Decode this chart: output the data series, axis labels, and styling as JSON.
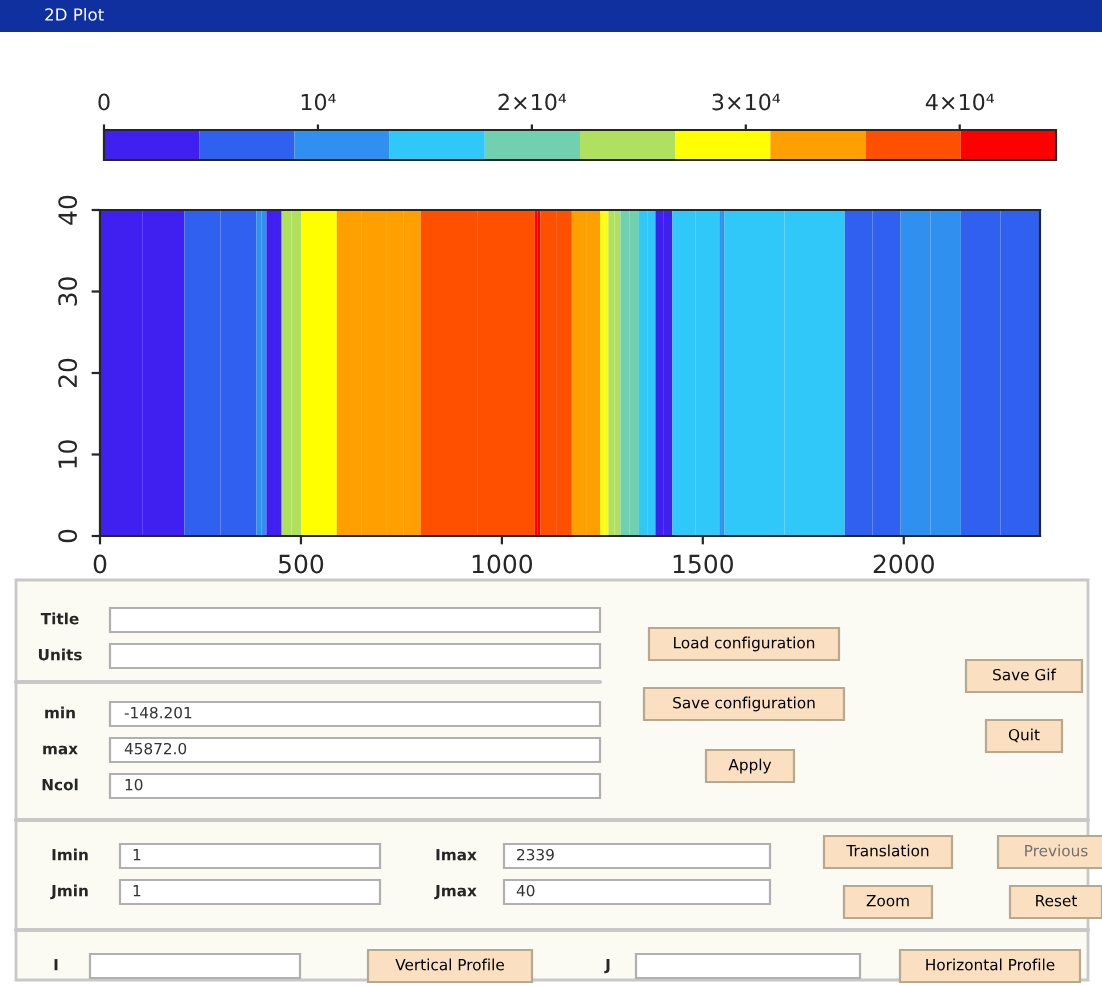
{
  "chart_data": [
    {
      "type": "heatmap",
      "title": "2D Plot",
      "x": [
        2,
        208,
        212,
        387,
        391,
        412,
        416,
        450,
        454,
        499,
        503,
        587,
        591,
        712,
        716,
        796,
        800,
        1080,
        1084,
        1094,
        1098,
        1172,
        1176,
        1243,
        1247,
        1263,
        1267,
        1293,
        1297,
        1339,
        1343,
        1380,
        1384,
        1422,
        1426,
        1539,
        1543,
        1552,
        1556,
        1851,
        1855,
        1990,
        1994,
        2140,
        2144,
        2337
      ],
      "cells": [
        [
          2000,
          2000,
          7000,
          7000,
          11000,
          11000,
          2000,
          2000,
          24000,
          24000,
          29000,
          29000,
          33000,
          33000,
          33000,
          33000,
          38000,
          38000,
          42000,
          42000,
          38000,
          38000,
          33000,
          33000,
          29000,
          29000,
          24000,
          24000,
          20000,
          20000,
          16000,
          16000,
          2000,
          2000,
          16000,
          16000,
          11000,
          11000,
          16000,
          16000,
          7000,
          7000,
          11000,
          11000,
          7000,
          7000
        ]
      ],
      "xlim": [
        0,
        2339
      ],
      "xticks": [
        0,
        500,
        1000,
        1500,
        2000
      ],
      "ylim": [
        0,
        40
      ],
      "yticks": [
        0,
        10,
        20,
        30,
        40
      ],
      "colors": [
        "#4020f0",
        "#3060f0",
        "#3090f0",
        "#30c8f8",
        "#70d0b0",
        "#b0e060",
        "#ffff00",
        "#ffa000",
        "#ff5000",
        "#ff0000"
      ],
      "clim": [
        0,
        44500
      ],
      "cticks": [
        0,
        {
          "value": 10000,
          "label": "10⁴"
        },
        {
          "value": 20000,
          "label": "2×10⁴"
        },
        {
          "value": 30000,
          "label": "3×10⁴"
        },
        {
          "value": 40000,
          "label": "4×10⁴"
        }
      ]
    },
    {
      "type": "other",
      "annotations": [
        "Title",
        "Units",
        "min",
        "-148.201",
        "max",
        "45872.0",
        "Ncol",
        "10",
        "Imin",
        "1",
        "Jmin",
        "1",
        "Imax",
        "2339",
        "Jmax",
        "40",
        "I",
        "J",
        "Load configuration",
        "Save configuration",
        "Apply",
        "Save Gif",
        "Quit",
        "Translation",
        "Previous",
        "Zoom",
        "Reset",
        "Vertical Profile",
        "Horizontal Profile"
      ]
    }
  ]
}
